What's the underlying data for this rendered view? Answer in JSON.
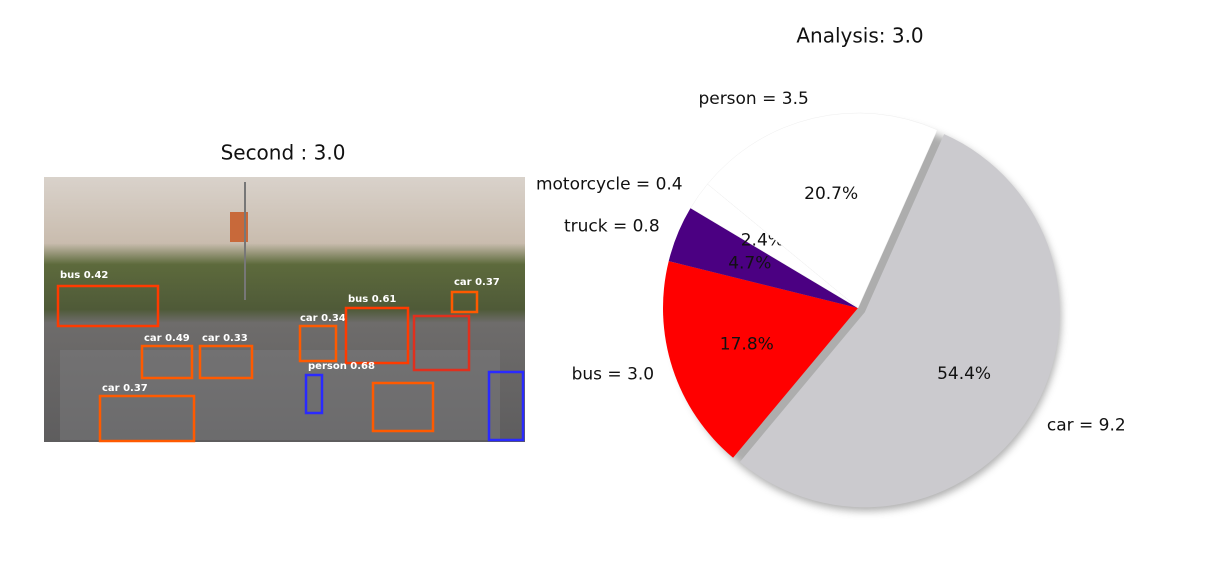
{
  "image_panel": {
    "title": "Second : 3.0",
    "detections": [
      "bus 0.42",
      "car 0.49",
      "car 0.33",
      "car 0.37",
      "car 0.34",
      "bus 0.61",
      "person 0.68",
      "car 0.37"
    ]
  },
  "chart_data": {
    "type": "pie",
    "title": "Analysis: 3.0",
    "categories": [
      "car = 9.2",
      "bus = 3.0",
      "truck = 0.8",
      "motorcycle = 0.4",
      "person = 3.5"
    ],
    "values": [
      54.4,
      17.8,
      4.7,
      2.4,
      20.7
    ],
    "value_labels": [
      "54.4%",
      "17.8%",
      "4.7%",
      "2.4%",
      "20.7%"
    ],
    "colors": [
      "#cbcace",
      "#ff0000",
      "#4b0082",
      "#ffffff",
      "#ffffff"
    ],
    "shadow": true
  }
}
